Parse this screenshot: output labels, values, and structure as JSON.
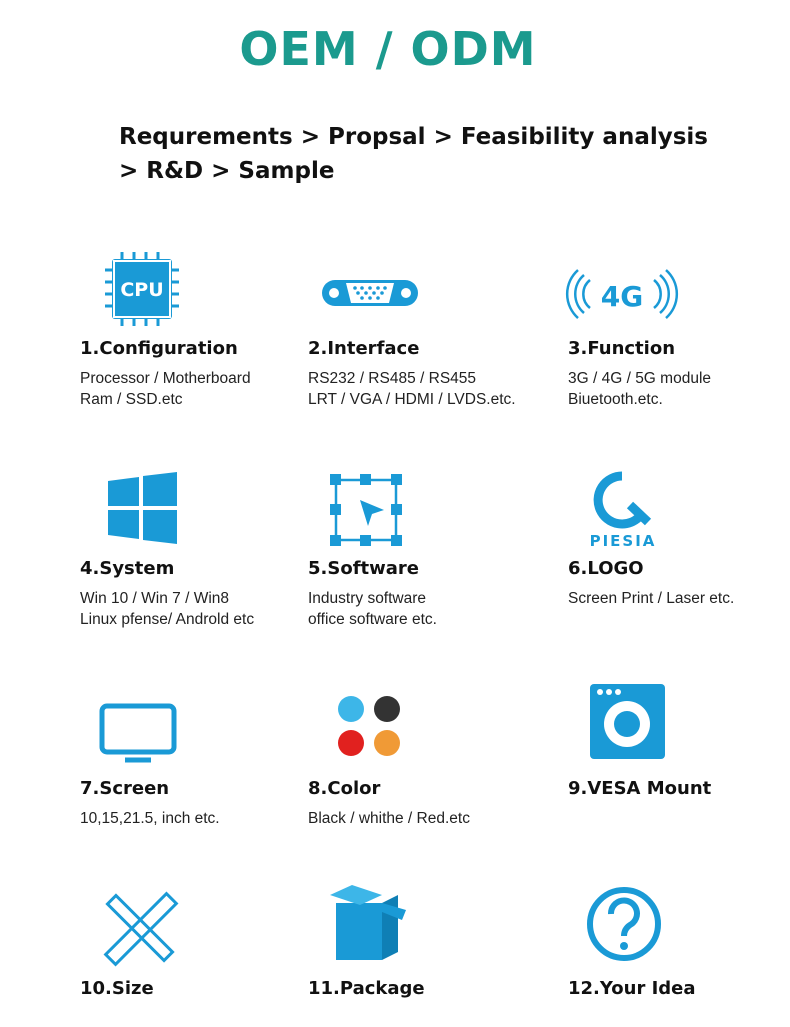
{
  "header": {
    "title": "OEM / ODM",
    "process": "Requrements > Propsal > Feasibility analysis > R&D > Sample"
  },
  "icons": {
    "cpu": "CPU",
    "network": "4G",
    "logo": "PIESIA"
  },
  "items": [
    {
      "title": "1.Configuration",
      "lines": [
        "Processor / Motherboard",
        "Ram / SSD.etc"
      ]
    },
    {
      "title": "2.Interface",
      "lines": [
        "RS232 / RS485 / RS455",
        "LRT / VGA / HDMI / LVDS.etc."
      ]
    },
    {
      "title": "3.Function",
      "lines": [
        "3G / 4G / 5G module",
        "Biuetooth.etc."
      ]
    },
    {
      "title": "4.System",
      "lines": [
        "Win 10 / Win 7 / Win8",
        "Linux pfense/ Androld etc"
      ]
    },
    {
      "title": "5.Software",
      "lines": [
        "Industry software",
        "office software etc."
      ]
    },
    {
      "title": "6.LOGO",
      "lines": [
        "Screen Print / Laser etc."
      ]
    },
    {
      "title": "7.Screen",
      "lines": [
        "10,15,21.5, inch etc."
      ]
    },
    {
      "title": "8.Color",
      "lines": [
        "Black / whithe / Red.etc"
      ]
    },
    {
      "title": "9.VESA Mount",
      "lines": []
    },
    {
      "title": "10.Size",
      "lines": []
    },
    {
      "title": "11.Package",
      "lines": []
    },
    {
      "title": "12.Your Idea",
      "lines": []
    }
  ]
}
